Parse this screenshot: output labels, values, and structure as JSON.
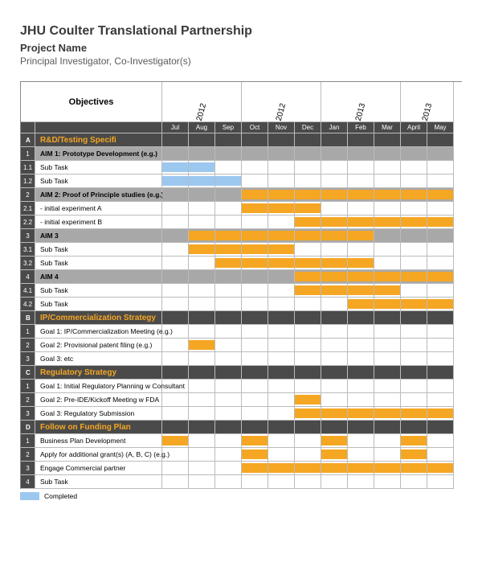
{
  "header": {
    "title": "JHU Coulter Translational Partnership",
    "projectName": "Project Name",
    "investigator": "Principal Investigator, Co-Investigator(s)"
  },
  "columns": {
    "idWidth": 18,
    "labelWidth": 158,
    "monthWidth": 33,
    "months": [
      "Jul",
      "Aug",
      "Sep",
      "Oct",
      "Nov",
      "Dec",
      "Jan",
      "Feb",
      "Mar",
      "April",
      "May"
    ],
    "yearGroups": [
      {
        "label": "2012",
        "span": 3
      },
      {
        "label": "2012",
        "span": 3
      },
      {
        "label": "2013",
        "span": 3
      },
      {
        "label": "2013",
        "span": 2
      }
    ],
    "objectivesLabel": "Objectives"
  },
  "colors": {
    "orange": "#f5a623",
    "blue": "#9cc8f0",
    "darkGrey": "#4a4a4a",
    "lightGrey": "#a8a8a8",
    "border": "#bbbbbb"
  },
  "sections": [
    {
      "id": "A",
      "label": "R&D/Testing Specifi",
      "rows": [
        {
          "id": "1",
          "type": "aim",
          "label": "AIM 1: Prototype Development (e.g.)",
          "bars": []
        },
        {
          "id": "1.1",
          "type": "task",
          "label": "Sub Task",
          "bars": [
            {
              "start": 0,
              "end": 2,
              "color": "blue"
            }
          ]
        },
        {
          "id": "1.2",
          "type": "task",
          "label": "Sub Task",
          "bars": [
            {
              "start": 0,
              "end": 3,
              "color": "blue"
            }
          ]
        },
        {
          "id": "2",
          "type": "aim",
          "label": "AIM 2: Proof of Principle studies (e.g.)",
          "bars": [
            {
              "start": 3,
              "end": 11,
              "color": "orange"
            }
          ]
        },
        {
          "id": "2.1",
          "type": "task",
          "label": "  - initial experiment A",
          "bars": [
            {
              "start": 3,
              "end": 6,
              "color": "orange"
            }
          ]
        },
        {
          "id": "2.2",
          "type": "task",
          "label": "  - initial experiment B",
          "bars": [
            {
              "start": 5,
              "end": 11,
              "color": "orange"
            }
          ]
        },
        {
          "id": "3",
          "type": "aim",
          "label": "AIM 3",
          "bars": [
            {
              "start": 1,
              "end": 8,
              "color": "orange"
            }
          ]
        },
        {
          "id": "3.1",
          "type": "task",
          "label": "Sub Task",
          "bars": [
            {
              "start": 1,
              "end": 5,
              "color": "orange"
            }
          ]
        },
        {
          "id": "3.2",
          "type": "task",
          "label": "Sub Task",
          "bars": [
            {
              "start": 2,
              "end": 8,
              "color": "orange"
            }
          ]
        },
        {
          "id": "4",
          "type": "aim",
          "label": "AIM 4",
          "bars": [
            {
              "start": 5,
              "end": 11,
              "color": "orange"
            }
          ]
        },
        {
          "id": "4.1",
          "type": "task",
          "label": "Sub Task",
          "bars": [
            {
              "start": 5,
              "end": 9,
              "color": "orange"
            }
          ]
        },
        {
          "id": "4.2",
          "type": "task",
          "label": "Sub Task",
          "bars": [
            {
              "start": 7,
              "end": 11,
              "color": "orange"
            }
          ]
        }
      ]
    },
    {
      "id": "B",
      "label": "IP/Commercialization Strategy",
      "rows": [
        {
          "id": "1",
          "type": "task",
          "label": "Goal 1: IP/Commercialization Meeting (e.g.)",
          "bars": []
        },
        {
          "id": "2",
          "type": "task",
          "label": "Goal 2: Provisional patent filing (e.g.)",
          "bars": [
            {
              "start": 1,
              "end": 2,
              "color": "orange"
            }
          ]
        },
        {
          "id": "3",
          "type": "task",
          "label": "Goal 3: etc",
          "bars": []
        }
      ]
    },
    {
      "id": "C",
      "label": "Regulatory Strategy",
      "rows": [
        {
          "id": "1",
          "type": "task",
          "label": "Goal 1: Initial Regulatory Planning w Consultant",
          "bars": []
        },
        {
          "id": "2",
          "type": "task",
          "label": "Goal 2: Pre-IDE/Kickoff Meeting w FDA",
          "bars": [
            {
              "start": 5,
              "end": 6,
              "color": "orange"
            }
          ]
        },
        {
          "id": "3",
          "type": "task",
          "label": "Goal 3: Regulatory Submission",
          "bars": [
            {
              "start": 5,
              "end": 11,
              "color": "orange"
            }
          ]
        }
      ]
    },
    {
      "id": "D",
      "label": "Follow on Funding Plan",
      "rows": [
        {
          "id": "1",
          "type": "task",
          "label": "Business Plan Development",
          "bars": [
            {
              "start": 0,
              "end": 1,
              "color": "orange"
            },
            {
              "start": 3,
              "end": 4,
              "color": "orange"
            },
            {
              "start": 6,
              "end": 7,
              "color": "orange"
            },
            {
              "start": 9,
              "end": 10,
              "color": "orange"
            }
          ]
        },
        {
          "id": "2",
          "type": "task",
          "label": "Apply for additional grant(s) (A, B, C) (e.g.)",
          "bars": [
            {
              "start": 3,
              "end": 4,
              "color": "orange"
            },
            {
              "start": 6,
              "end": 7,
              "color": "orange"
            },
            {
              "start": 9,
              "end": 10,
              "color": "orange"
            }
          ]
        },
        {
          "id": "3",
          "type": "task",
          "label": "Engage Commercial partner",
          "bars": [
            {
              "start": 3,
              "end": 11,
              "color": "orange"
            }
          ]
        },
        {
          "id": "4",
          "type": "task",
          "label": "Sub Task",
          "bars": []
        }
      ]
    }
  ],
  "legend": {
    "swatch": "blue",
    "label": "Completed"
  }
}
